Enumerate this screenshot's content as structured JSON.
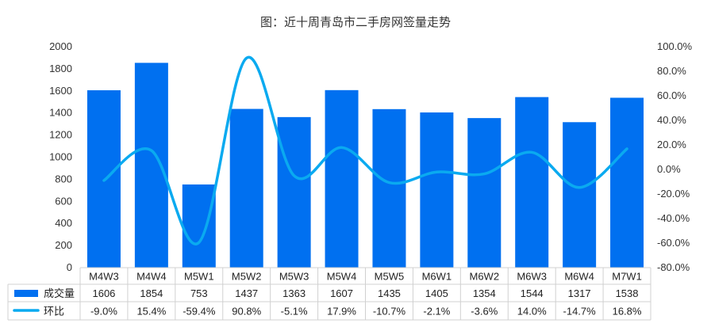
{
  "chart_data": {
    "type": "bar",
    "title": "图：近十周青岛市二手房网签量走势",
    "categories": [
      "M4W3",
      "M4W4",
      "M5W1",
      "M5W2",
      "M5W3",
      "M5W4",
      "M5W5",
      "M6W1",
      "M6W2",
      "M6W3",
      "M6W4",
      "M7W1"
    ],
    "series": [
      {
        "name": "成交量",
        "kind": "bar",
        "axis": "left",
        "color": "#0070F0",
        "values": [
          1606,
          1854,
          753,
          1437,
          1363,
          1607,
          1435,
          1405,
          1354,
          1544,
          1317,
          1538
        ],
        "labels": [
          "1606",
          "1854",
          "753",
          "1437",
          "1363",
          "1607",
          "1435",
          "1405",
          "1354",
          "1544",
          "1317",
          "1538"
        ]
      },
      {
        "name": "环比",
        "kind": "line",
        "axis": "right",
        "color": "#0AAAF0",
        "values": [
          -9.0,
          15.4,
          -59.4,
          90.8,
          -5.1,
          17.9,
          -10.7,
          -2.1,
          -3.6,
          14.0,
          -14.7,
          16.8
        ],
        "labels": [
          "-9.0%",
          "15.4%",
          "-59.4%",
          "90.8%",
          "-5.1%",
          "17.9%",
          "-10.7%",
          "-2.1%",
          "-3.6%",
          "14.0%",
          "-14.7%",
          "16.8%"
        ]
      }
    ],
    "y_left": {
      "ylim": [
        0,
        2000
      ],
      "ticks": [
        0,
        200,
        400,
        600,
        800,
        1000,
        1200,
        1400,
        1600,
        1800,
        2000
      ],
      "tick_labels": [
        "0",
        "200",
        "400",
        "600",
        "800",
        "1000",
        "1200",
        "1400",
        "1600",
        "1800",
        "2000"
      ]
    },
    "y_right": {
      "ylim": [
        -80,
        100
      ],
      "ticks": [
        -80,
        -60,
        -40,
        -20,
        0,
        20,
        40,
        60,
        80,
        100
      ],
      "tick_labels": [
        "-80.0%",
        "-60.0%",
        "-40.0%",
        "-20.0%",
        "0.0%",
        "20.0%",
        "40.0%",
        "60.0%",
        "80.0%",
        "100.0%"
      ]
    },
    "grid": false,
    "legend": "data-table-left"
  }
}
